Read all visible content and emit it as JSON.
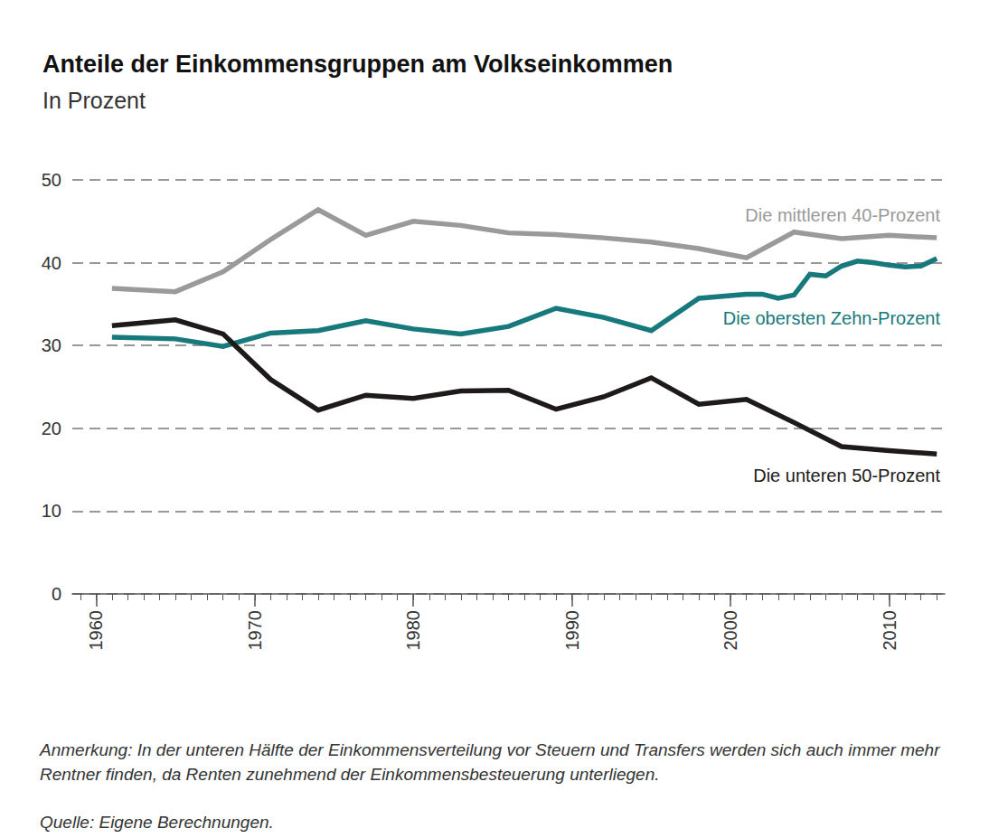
{
  "chart_data": {
    "type": "line",
    "title": "Anteile der Einkommensgruppen am Volkseinkommen",
    "subtitle": "In Prozent",
    "note": "Anmerkung: In der unteren Hälfte der Einkommensverteilung vor Steuern und Transfers werden sich auch immer mehr Rentner finden, da Renten zunehmend der Einkommensbesteuerung unterliegen.",
    "source": "Quelle: Eigene Berechnungen.",
    "series": [
      {
        "name": "Die mittleren 40-Prozent",
        "color": "#9a9a9a",
        "x": [
          1961,
          1965,
          1968,
          1971,
          1974,
          1977,
          1980,
          1983,
          1986,
          1989,
          1992,
          1995,
          1998,
          2001,
          2004,
          2007,
          2010,
          2013
        ],
        "values": [
          36.9,
          36.5,
          38.9,
          42.8,
          46.4,
          43.3,
          45.0,
          44.5,
          43.6,
          43.4,
          43.0,
          42.5,
          41.7,
          40.6,
          43.7,
          42.9,
          43.3,
          43.0
        ]
      },
      {
        "name": "Die obersten Zehn-Prozent",
        "color": "#17797b",
        "x": [
          1961,
          1965,
          1968,
          1971,
          1974,
          1977,
          1980,
          1983,
          1986,
          1989,
          1992,
          1995,
          1998,
          2001,
          2002,
          2003,
          2004,
          2005,
          2006,
          2007,
          2008,
          2009,
          2010,
          2011,
          2012,
          2013
        ],
        "values": [
          31.0,
          30.8,
          29.9,
          31.5,
          31.8,
          33.0,
          32.0,
          31.4,
          32.3,
          34.5,
          33.4,
          31.8,
          35.7,
          36.2,
          36.2,
          35.7,
          36.1,
          38.6,
          38.4,
          39.6,
          40.2,
          40.0,
          39.7,
          39.5,
          39.6,
          40.5
        ]
      },
      {
        "name": "Die unteren 50-Prozent",
        "color": "#1e1a1a",
        "x": [
          1961,
          1965,
          1968,
          1971,
          1974,
          1977,
          1980,
          1983,
          1986,
          1989,
          1992,
          1995,
          1998,
          2001,
          2004,
          2007,
          2010,
          2013
        ],
        "values": [
          32.4,
          33.1,
          31.4,
          25.9,
          22.2,
          24.0,
          23.6,
          24.5,
          24.6,
          22.3,
          23.8,
          26.1,
          22.9,
          23.5,
          20.7,
          17.8,
          17.3,
          16.9
        ]
      }
    ],
    "xlim": [
      1958.5,
      2013.5
    ],
    "xticks": [
      1960,
      1970,
      1980,
      1990,
      2000,
      2010
    ],
    "ylim": [
      0,
      50
    ],
    "yticks": [
      0,
      10,
      20,
      30,
      40,
      50
    ],
    "grid": true,
    "tick_labels": true
  }
}
